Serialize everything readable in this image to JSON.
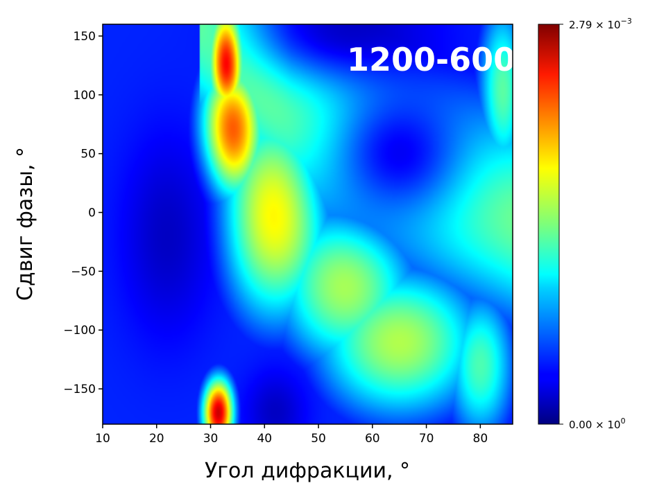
{
  "chart_data": {
    "type": "heatmap",
    "colormap": "jet",
    "xlabel": "Угол дифракции, °",
    "ylabel": "Сдвиг фазы, °",
    "xlim": [
      10,
      86
    ],
    "ylim": [
      -180,
      160
    ],
    "x_ticks": [
      "10",
      "20",
      "30",
      "40",
      "50",
      "60",
      "70",
      "80"
    ],
    "y_ticks": [
      "150",
      "100",
      "50",
      "0",
      "−50",
      "−100",
      "−150"
    ],
    "annotation": "1200-600",
    "colorbar": {
      "min": 0,
      "max": 0.00279,
      "min_label": {
        "mantissa": "0.00",
        "exponent": "0"
      },
      "max_label": {
        "mantissa": "2.79",
        "exponent": "−3"
      }
    },
    "features": [
      {
        "x_center": 33,
        "y_center": 130,
        "value_fraction": 0.98
      },
      {
        "x_center": 34,
        "y_center": 70,
        "value_fraction": 0.82
      },
      {
        "x_center": 31.5,
        "y_center": -170,
        "value_fraction": 0.96
      },
      {
        "x_center": 42,
        "y_center": 0,
        "value_fraction": 0.65
      },
      {
        "x_center": 55,
        "y_center": -60,
        "value_fraction": 0.55
      },
      {
        "x_center": 65,
        "y_center": -110,
        "value_fraction": 0.55
      },
      {
        "x_center": 84,
        "y_center": 100,
        "value_fraction": 0.5
      },
      {
        "x_center": 80,
        "y_center": -130,
        "value_fraction": 0.45
      },
      {
        "x_center": 22,
        "y_center": -20,
        "value_fraction": 0.05
      },
      {
        "x_center": 65,
        "y_center": 50,
        "value_fraction": 0.05
      },
      {
        "x_center": 42,
        "y_center": -170,
        "value_fraction": 0.05
      },
      {
        "x_center": 55,
        "y_center": 155,
        "value_fraction": 0.05
      }
    ]
  }
}
